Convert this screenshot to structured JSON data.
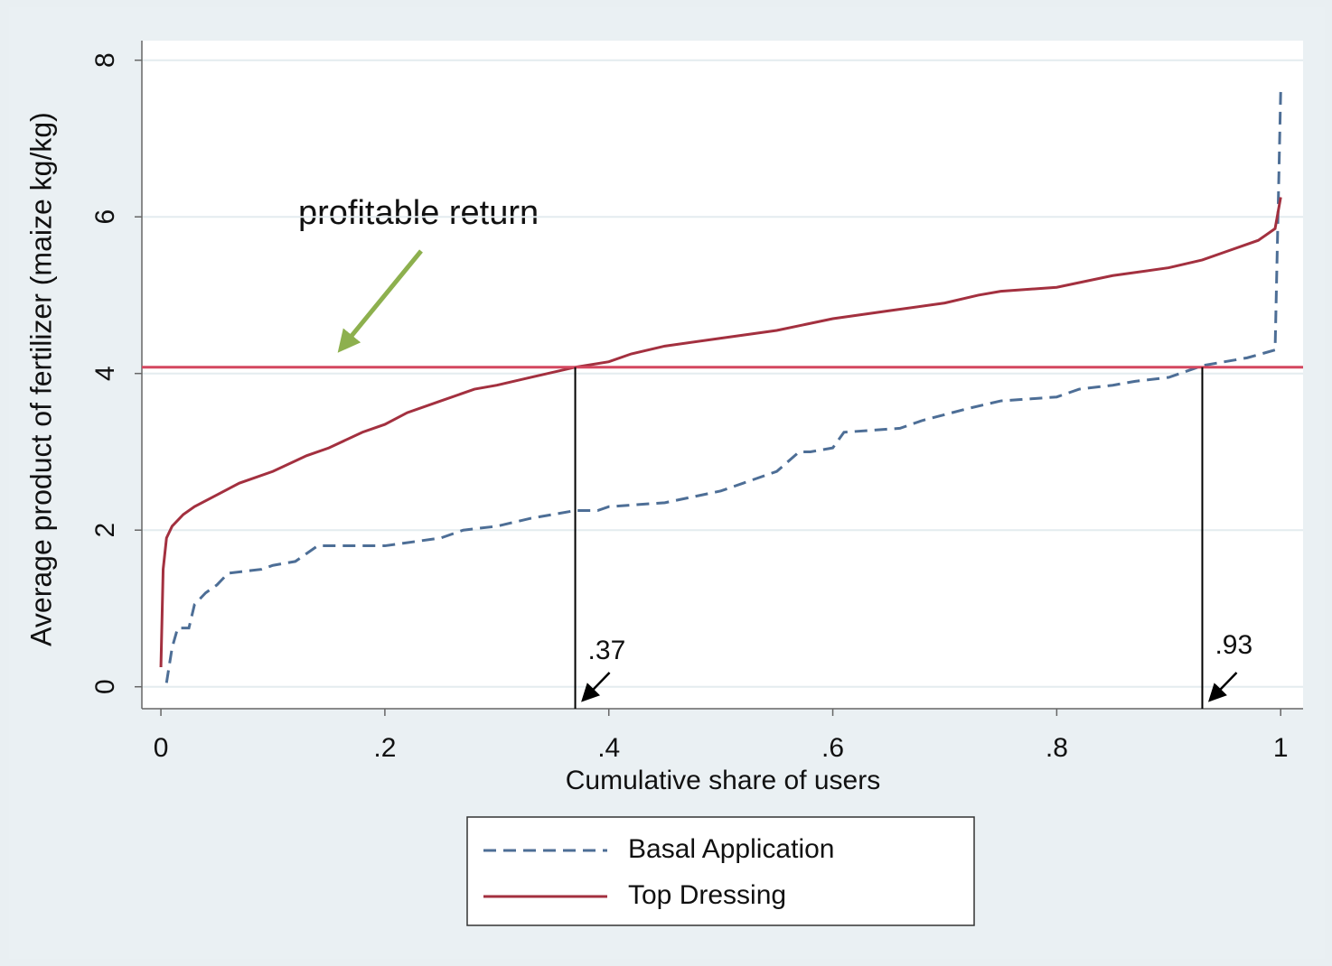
{
  "chart_data": {
    "type": "line",
    "xlabel": "Cumulative share of users",
    "ylabel": "Average product of fertilizer (maize kg/kg)",
    "xlim": [
      -0.017,
      1.02
    ],
    "ylim": [
      -0.28,
      8.25
    ],
    "xticks": [
      0,
      {
        "value": 0.2,
        "label": ".2"
      },
      {
        "value": 0.4,
        "label": ".4"
      },
      {
        "value": 0.6,
        "label": ".6"
      },
      {
        "value": 0.8,
        "label": ".8"
      },
      1
    ],
    "yticks": [
      0,
      2,
      4,
      6,
      8
    ],
    "grid": true,
    "series": [
      {
        "name": "Basal Application",
        "color": "#4d6e96",
        "dashed": true,
        "x": [
          0.005,
          0.01,
          0.015,
          0.025,
          0.03,
          0.04,
          0.05,
          0.06,
          0.09,
          0.1,
          0.12,
          0.14,
          0.2,
          0.25,
          0.27,
          0.3,
          0.33,
          0.35,
          0.37,
          0.39,
          0.4,
          0.45,
          0.5,
          0.52,
          0.55,
          0.57,
          0.58,
          0.6,
          0.61,
          0.66,
          0.68,
          0.72,
          0.75,
          0.8,
          0.82,
          0.85,
          0.87,
          0.9,
          0.93,
          0.97,
          0.995,
          1
        ],
        "values": [
          0.05,
          0.5,
          0.75,
          0.75,
          1.05,
          1.2,
          1.3,
          1.45,
          1.5,
          1.55,
          1.6,
          1.8,
          1.8,
          1.9,
          2.0,
          2.05,
          2.15,
          2.2,
          2.25,
          2.25,
          2.3,
          2.35,
          2.5,
          2.6,
          2.75,
          3.0,
          3.0,
          3.05,
          3.25,
          3.3,
          3.4,
          3.55,
          3.65,
          3.7,
          3.8,
          3.85,
          3.9,
          3.95,
          4.1,
          4.2,
          4.3,
          7.6
        ]
      },
      {
        "name": "Top Dressing",
        "color": "#a3303f",
        "dashed": false,
        "x": [
          0,
          0.002,
          0.005,
          0.01,
          0.02,
          0.03,
          0.05,
          0.07,
          0.1,
          0.13,
          0.15,
          0.18,
          0.2,
          0.22,
          0.25,
          0.28,
          0.3,
          0.33,
          0.37,
          0.4,
          0.42,
          0.45,
          0.5,
          0.55,
          0.6,
          0.65,
          0.7,
          0.73,
          0.75,
          0.8,
          0.85,
          0.9,
          0.93,
          0.95,
          0.98,
          0.995,
          1
        ],
        "values": [
          0.25,
          1.5,
          1.9,
          2.05,
          2.2,
          2.3,
          2.45,
          2.6,
          2.75,
          2.95,
          3.05,
          3.25,
          3.35,
          3.5,
          3.65,
          3.8,
          3.85,
          3.95,
          4.08,
          4.15,
          4.25,
          4.35,
          4.45,
          4.55,
          4.7,
          4.8,
          4.9,
          5.0,
          5.05,
          5.1,
          5.25,
          5.35,
          5.45,
          5.55,
          5.7,
          5.85,
          6.25
        ]
      }
    ],
    "hline": {
      "value": 4.08,
      "color": "#d4475f"
    },
    "vlines": [
      {
        "value": 0.37,
        "label": ".37"
      },
      {
        "value": 0.93,
        "label": ".93"
      }
    ],
    "annotation": "profitable return"
  }
}
